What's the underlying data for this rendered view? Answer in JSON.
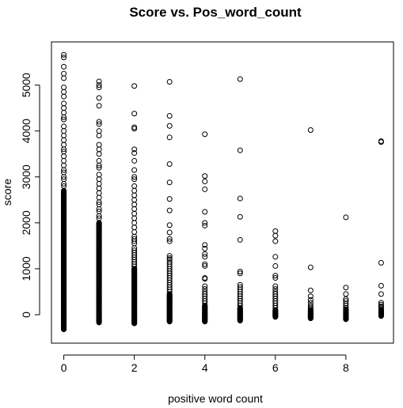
{
  "chart_data": {
    "type": "scatter",
    "title": "Score vs. Pos_word_count",
    "xlabel": "positive word count",
    "ylabel": "score",
    "xlim": [
      -0.35,
      9.35
    ],
    "ylim": [
      -620,
      5940
    ],
    "xticks": [
      0,
      2,
      4,
      6,
      8
    ],
    "xtick_labels": [
      "0",
      "2",
      "4",
      "6",
      "8"
    ],
    "yticks": [
      0,
      1000,
      2000,
      3000,
      4000,
      5000
    ],
    "ytick_labels": [
      "0",
      "1000",
      "2000",
      "3000",
      "4000",
      "5000"
    ],
    "grid": false,
    "marker": "open-circle",
    "point_color": "#000000",
    "series": [
      {
        "x": 0,
        "dense_range": [
          -320,
          2700
        ],
        "values": [
          5660,
          5600,
          5400,
          5250,
          5150,
          4950,
          4850,
          4750,
          4600,
          4500,
          4400,
          4300,
          4250,
          4100,
          4000,
          3900,
          3800,
          3700,
          3600,
          3550,
          3450,
          3350,
          3250,
          3150,
          3100,
          3000,
          2950,
          2850,
          2800
        ]
      },
      {
        "x": 1,
        "dense_range": [
          -170,
          2000
        ],
        "values": [
          5080,
          5000,
          4950,
          4720,
          4550,
          4200,
          4150,
          4000,
          3900,
          3700,
          3600,
          3500,
          3350,
          3250,
          3200,
          3050,
          2950,
          2850,
          2750,
          2650,
          2550,
          2450,
          2400,
          2300,
          2250,
          2150,
          2100
        ]
      },
      {
        "x": 2,
        "dense_range": [
          -190,
          1000
        ],
        "values": [
          4980,
          4380,
          4080,
          4050,
          3600,
          3520,
          3350,
          3150,
          3000,
          2950,
          2800,
          2700,
          2600,
          2500,
          2400,
          2300,
          2200,
          2100,
          2000,
          1900,
          1800,
          1700,
          1650,
          1600,
          1550,
          1450,
          1400,
          1350,
          1300,
          1250,
          1200,
          1150,
          1100,
          1050
        ]
      },
      {
        "x": 3,
        "dense_range": [
          -150,
          450
        ],
        "values": [
          5070,
          4330,
          4110,
          3860,
          3280,
          2880,
          2520,
          2270,
          1950,
          1790,
          1650,
          1600,
          1280,
          1230,
          1200,
          1150,
          1100,
          1050,
          1000,
          950,
          900,
          850,
          800,
          750,
          700,
          650,
          600,
          550,
          500
        ]
      },
      {
        "x": 4,
        "dense_range": [
          -150,
          200
        ],
        "values": [
          3930,
          3020,
          2900,
          2730,
          2240,
          2000,
          1940,
          1520,
          1440,
          1320,
          1260,
          1100,
          1060,
          800,
          780,
          620,
          560,
          500,
          450,
          400,
          350,
          300,
          250
        ]
      },
      {
        "x": 5,
        "dense_range": [
          -130,
          150
        ],
        "values": [
          5130,
          3580,
          2530,
          2130,
          1630,
          940,
          900,
          650,
          600,
          550,
          500,
          450,
          400,
          350,
          300,
          250,
          200
        ]
      },
      {
        "x": 6,
        "dense_range": [
          -50,
          100
        ],
        "values": [
          1820,
          1720,
          1600,
          1260,
          1060,
          850,
          800,
          620,
          560,
          500,
          450,
          400,
          350,
          300,
          250,
          200,
          150
        ]
      },
      {
        "x": 7,
        "dense_range": [
          -80,
          100
        ],
        "values": [
          4020,
          1030,
          530,
          400,
          320,
          260,
          200,
          160,
          130
        ]
      },
      {
        "x": 8,
        "dense_range": [
          -100,
          100
        ],
        "values": [
          2120,
          590,
          450,
          340,
          300,
          250,
          200,
          150,
          120
        ]
      },
      {
        "x": 9,
        "dense_range": [
          -30,
          100
        ],
        "values": [
          3780,
          3760,
          1130,
          630,
          450,
          260,
          220,
          180,
          150,
          120
        ]
      }
    ]
  }
}
